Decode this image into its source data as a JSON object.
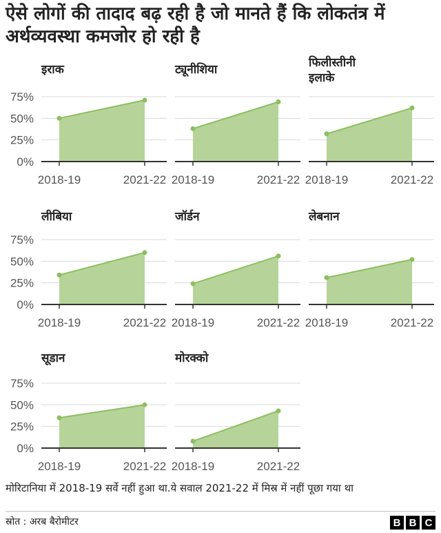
{
  "title": "ऐसे लोगों की तादाद बढ़ रही है जो मानते हैं कि लोकतंत्र में अर्थव्यवस्था कमजोर हो रही है",
  "note": "मोरिटानिया में 2018-19 सर्वे नहीं हुआ था.ये सवाल 2021-22 में मिस्र में नहीं पूछा गया था",
  "source": "स्रोत : अरब बैरोमीटर",
  "logo_letters": [
    "B",
    "B",
    "C"
  ],
  "colors": {
    "area": "#b6d49a",
    "line": "#8cbf5e",
    "point": "#8cbf5e",
    "grid": "#d9d9d9",
    "axis": "#333333"
  },
  "chart_data": [
    {
      "type": "area",
      "title": "इराक",
      "x": [
        "2018-19",
        "2021-22"
      ],
      "values": [
        50,
        71
      ],
      "ylim": [
        0,
        75
      ],
      "yticks": [
        "75%",
        "50%",
        "25%",
        "0%"
      ],
      "grid": true
    },
    {
      "type": "area",
      "title": "ट्यूनीशिया",
      "x": [
        "2018-19",
        "2021-22"
      ],
      "values": [
        38,
        69
      ],
      "ylim": [
        0,
        75
      ],
      "grid": true
    },
    {
      "type": "area",
      "title": "फिलीस्तीनी इलाके",
      "x": [
        "2018-19",
        "2021-22"
      ],
      "values": [
        32,
        62
      ],
      "ylim": [
        0,
        75
      ],
      "grid": true
    },
    {
      "type": "area",
      "title": "लीबिया",
      "x": [
        "2018-19",
        "2021-22"
      ],
      "values": [
        34,
        60
      ],
      "ylim": [
        0,
        75
      ],
      "yticks": [
        "75%",
        "50%",
        "25%",
        "0%"
      ],
      "grid": true
    },
    {
      "type": "area",
      "title": "जॉर्डन",
      "x": [
        "2018-19",
        "2021-22"
      ],
      "values": [
        24,
        56
      ],
      "ylim": [
        0,
        75
      ],
      "grid": true
    },
    {
      "type": "area",
      "title": "लेबनान",
      "x": [
        "2018-19",
        "2021-22"
      ],
      "values": [
        31,
        52
      ],
      "ylim": [
        0,
        75
      ],
      "grid": true
    },
    {
      "type": "area",
      "title": "सूडान",
      "x": [
        "2018-19",
        "2021-22"
      ],
      "values": [
        35,
        50
      ],
      "ylim": [
        0,
        75
      ],
      "yticks": [
        "75%",
        "50%",
        "25%",
        "0%"
      ],
      "grid": true
    },
    {
      "type": "area",
      "title": "मोरक्को",
      "x": [
        "2018-19",
        "2021-22"
      ],
      "values": [
        8,
        43
      ],
      "ylim": [
        0,
        75
      ],
      "grid": true
    }
  ]
}
